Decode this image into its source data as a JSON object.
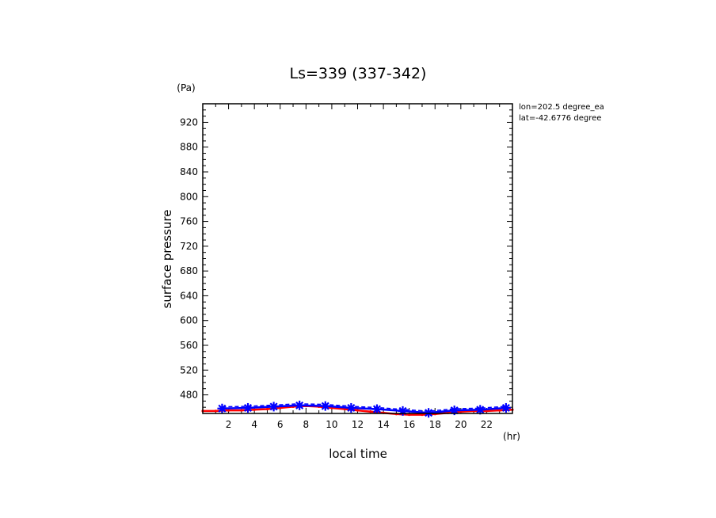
{
  "chart_data": {
    "type": "line",
    "title": "Ls=339 (337-342)",
    "xlabel": "local time",
    "ylabel": "surface pressure",
    "x_unit": "(hr)",
    "y_unit": "(Pa)",
    "annotations": [
      "lon=202.5 degree_ea",
      "lat=-42.6776 degree"
    ],
    "xlim": [
      0,
      24
    ],
    "ylim": [
      450,
      950
    ],
    "x_ticks": [
      2,
      4,
      6,
      8,
      10,
      12,
      14,
      16,
      18,
      20,
      22
    ],
    "y_ticks": [
      480,
      520,
      560,
      600,
      640,
      680,
      720,
      760,
      800,
      840,
      880,
      920
    ],
    "grid": false,
    "series": [
      {
        "color": "#ff0000",
        "marker": "dot",
        "x": [
          0,
          1,
          2,
          3,
          4,
          5,
          6,
          7,
          8,
          9,
          10,
          11,
          12,
          13,
          14,
          15,
          16,
          17,
          18,
          19,
          20,
          21,
          22,
          23,
          24
        ],
        "values": [
          454,
          454,
          455,
          455,
          456,
          457,
          459,
          461,
          462,
          461,
          459,
          457,
          455,
          453,
          451,
          449,
          448,
          448,
          449,
          451,
          453,
          454,
          454,
          455,
          456
        ]
      },
      {
        "color": "#0000ff",
        "marker": "star",
        "x": [
          1.5,
          3.5,
          5.5,
          7.5,
          9.5,
          11.5,
          13.5,
          15.5,
          17.5,
          19.5,
          21.5,
          23.5
        ],
        "values": [
          458,
          459,
          461,
          463,
          462,
          459,
          457,
          454,
          451,
          455,
          456,
          459
        ]
      }
    ]
  }
}
